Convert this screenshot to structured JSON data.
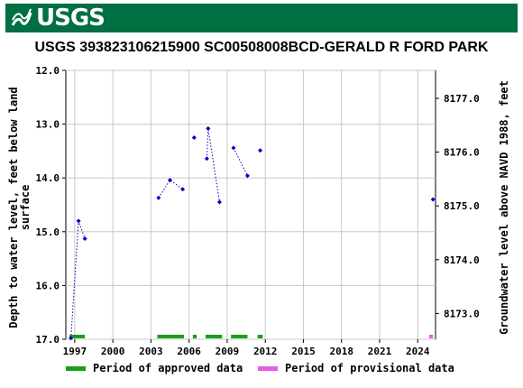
{
  "header": {
    "logo_text": "USGS",
    "title": "USGS 393823106215900 SC00508008BCD-GERALD R FORD PARK"
  },
  "colors": {
    "banner": "#006f41",
    "approved": "#1a9e1a",
    "provisional": "#e65ce6",
    "data": "#0000cc"
  },
  "chart_data": {
    "type": "scatter",
    "title": "USGS 393823106215900 SC00508008BCD-GERALD R FORD PARK",
    "xlabel": "",
    "ylabel": "Depth to water level, feet below land surface",
    "y2label": "Groundwater level above NAVD 1988, feet",
    "xlim": [
      1996.3,
      2025.4
    ],
    "ylim": [
      17.0,
      12.0
    ],
    "y2lim": [
      8172.52,
      8177.52
    ],
    "y_inverted": true,
    "grid": true,
    "x_ticks": [
      1997,
      2000,
      2003,
      2006,
      2009,
      2012,
      2015,
      2018,
      2021,
      2024
    ],
    "x_tick_labels": [
      "1997",
      "2000",
      "2003",
      "2006",
      "2009",
      "2012",
      "2015",
      "2018",
      "2021",
      "2024"
    ],
    "y_ticks": [
      12.0,
      13.0,
      14.0,
      15.0,
      16.0,
      17.0
    ],
    "y_tick_labels": [
      "12.0",
      "13.0",
      "14.0",
      "15.0",
      "16.0",
      "17.0"
    ],
    "y2_ticks": [
      8177.0,
      8176.0,
      8175.0,
      8174.0,
      8173.0
    ],
    "y2_tick_labels": [
      "8177.0",
      "8176.0",
      "8175.0",
      "8174.0",
      "8173.0"
    ],
    "series": [
      {
        "values": [
          {
            "x": 1996.7,
            "y": 16.98
          },
          {
            "x": 1997.3,
            "y": 14.8
          },
          {
            "x": 1997.8,
            "y": 15.13
          }
        ]
      },
      {
        "values": [
          {
            "x": 2003.6,
            "y": 14.37
          },
          {
            "x": 2004.5,
            "y": 14.04
          },
          {
            "x": 2005.5,
            "y": 14.21
          }
        ]
      },
      {
        "values": [
          {
            "x": 2006.4,
            "y": 13.25
          }
        ]
      },
      {
        "values": [
          {
            "x": 2007.4,
            "y": 13.64
          },
          {
            "x": 2007.5,
            "y": 13.08
          },
          {
            "x": 2008.4,
            "y": 14.45
          }
        ]
      },
      {
        "values": [
          {
            "x": 2009.5,
            "y": 13.44
          },
          {
            "x": 2010.6,
            "y": 13.96
          }
        ]
      },
      {
        "values": [
          {
            "x": 2011.6,
            "y": 13.49
          }
        ]
      },
      {
        "values": [
          {
            "x": 2025.2,
            "y": 14.4
          }
        ]
      }
    ],
    "approved_periods": [
      [
        1996.6,
        1997.8
      ],
      [
        2003.5,
        2005.6
      ],
      [
        2006.3,
        2006.6
      ],
      [
        2007.3,
        2008.6
      ],
      [
        2009.3,
        2010.6
      ],
      [
        2011.4,
        2011.8
      ]
    ],
    "provisional_periods": [
      [
        2024.9,
        2025.2
      ]
    ],
    "legend": {
      "position": "bottom",
      "approved_label": "Period of approved data",
      "provisional_label": "Period of provisional data"
    }
  }
}
